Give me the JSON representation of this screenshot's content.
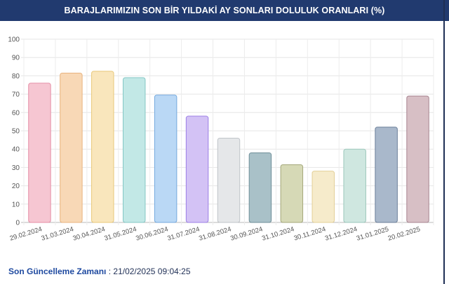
{
  "header": {
    "title": "BARAJLARIMIZIN SON BİR YILDAKİ AY SONLARI DOLULUK ORANLARI (%)"
  },
  "footer": {
    "label": "Son Güncelleme Zamanı",
    "separator": " : ",
    "value": "21/02/2025 09:04:25"
  },
  "chart_data": {
    "type": "bar",
    "title": "BARAJLARIMIZIN SON BİR YILDAKİ AY SONLARI DOLULUK ORANLARI (%)",
    "categories": [
      "29.02.2024",
      "31.03.2024",
      "30.04.2024",
      "31.05.2024",
      "30.06.2024",
      "31.07.2024",
      "31.08.2024",
      "30.09.2024",
      "31.10.2024",
      "30.11.2024",
      "31.12.2024",
      "31.01.2025",
      "20.02.2025"
    ],
    "values": [
      76,
      81.5,
      82.5,
      79,
      69.5,
      58,
      46,
      38,
      31.5,
      28,
      40,
      52,
      69
    ],
    "ylim": [
      0,
      100
    ],
    "yticks": [
      0,
      10,
      20,
      30,
      40,
      50,
      60,
      70,
      80,
      90,
      100
    ],
    "grid": true,
    "colors": [
      "#f6c6d2",
      "#f8d8b6",
      "#f9e6bc",
      "#c2e8e6",
      "#bad8f5",
      "#d3c2f5",
      "#e5e7e9",
      "#a9c1c8",
      "#d6d9b6",
      "#f6ebcb",
      "#cfe7e0",
      "#a9b8cb",
      "#d7bfc5"
    ],
    "border_colors": [
      "#e58ea6",
      "#e8b37e",
      "#e8c878",
      "#84c7c5",
      "#74a9de",
      "#9c7fe6",
      "#c0c4c9",
      "#6e8e98",
      "#a4a87a",
      "#e3cf97",
      "#9bc7bb",
      "#6a7e99",
      "#a88591"
    ]
  }
}
